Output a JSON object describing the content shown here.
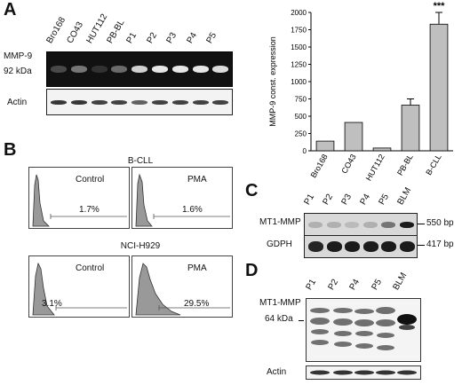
{
  "panels": {
    "A": {
      "letter": "A",
      "lanes": [
        "Bro168",
        "CO43",
        "HUT112",
        "PB-BL",
        "P1",
        "P2",
        "P3",
        "P4",
        "P5"
      ],
      "mmp9_label": "MMP-9",
      "kda_label": "92 kDa",
      "actin_label": "Actin",
      "mmp9_band_intensity": [
        0.25,
        0.45,
        0.15,
        0.4,
        0.85,
        0.95,
        0.95,
        0.95,
        0.9
      ],
      "actin_band_intensity": [
        0.9,
        0.9,
        0.85,
        0.85,
        0.7,
        0.85,
        0.85,
        0.85,
        0.85
      ]
    },
    "B": {
      "letter": "B",
      "groups": [
        {
          "title": "B-CLL",
          "plots": [
            {
              "condition": "Control",
              "percent": "1.7%"
            },
            {
              "condition": "PMA",
              "percent": "1.6%"
            }
          ]
        },
        {
          "title": "NCI-H929",
          "plots": [
            {
              "condition": "Control",
              "percent": "3.1%"
            },
            {
              "condition": "PMA",
              "percent": "29.5%"
            }
          ]
        }
      ]
    },
    "C": {
      "letter": "C",
      "lanes": [
        "P1",
        "P2",
        "P3",
        "P4",
        "P5",
        "BLM"
      ],
      "mt1_label": "MT1-MMP",
      "gdph_label": "GDPH",
      "mt1_bp": "550 bp",
      "gdph_bp": "417 bp",
      "mt1_band_intensity": [
        0.2,
        0.2,
        0.15,
        0.2,
        0.5,
        0.95
      ],
      "gdph_band_intensity": [
        0.9,
        0.95,
        0.95,
        0.95,
        0.95,
        0.95
      ]
    },
    "D": {
      "letter": "D",
      "lanes": [
        "P1",
        "P2",
        "P4",
        "P5",
        "BLM"
      ],
      "mt1_label": "MT1-MMP",
      "kda_label": "64 kDa",
      "actin_label": "Actin"
    }
  },
  "chart_data": {
    "type": "bar",
    "categories": [
      "Bro168",
      "CO43",
      "HUT112",
      "PB-BL",
      "B-CLL"
    ],
    "values": [
      140,
      410,
      40,
      660,
      1830
    ],
    "errors": [
      0,
      0,
      0,
      90,
      170
    ],
    "ylabel": "MMP-9 const. expression",
    "xlabel": "",
    "ylim": [
      0,
      2000
    ],
    "yticks": [
      "0",
      "250",
      "500",
      "750",
      "1000",
      "1250",
      "1500",
      "1750",
      "2000"
    ],
    "significance_label": "***",
    "significance_index": 4,
    "bar_color": "#bfbfbf",
    "grid": false
  }
}
